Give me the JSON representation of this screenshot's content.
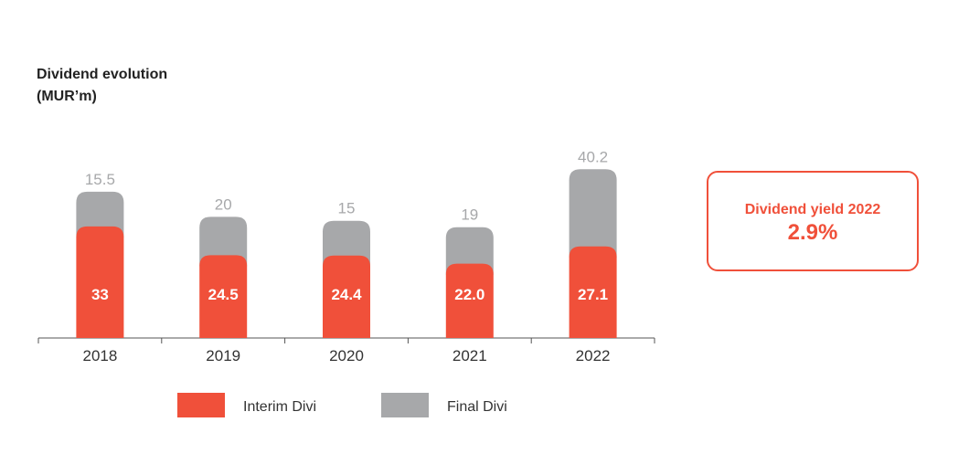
{
  "heading": {
    "line1": "Dividend evolution",
    "line2": "(MUR’m)"
  },
  "colors": {
    "interim": "#f0503a",
    "final": "#a7a8aa",
    "accent": "#f0503a",
    "axis": "#555555"
  },
  "yield_box": {
    "label": "Dividend yield 2022",
    "value": "2.9%"
  },
  "chart_data": {
    "type": "bar",
    "stacked": true,
    "title": "Dividend evolution",
    "ylabel": "(MUR’m)",
    "categories": [
      "2018",
      "2019",
      "2020",
      "2021",
      "2022"
    ],
    "series": [
      {
        "name": "Interim Divi",
        "values": [
          33,
          24.5,
          24.4,
          22.0,
          27.1
        ],
        "labels": [
          "33",
          "24.5",
          "24.4",
          "22.0",
          "27.1"
        ]
      },
      {
        "name": "Final Divi",
        "values": [
          15.5,
          20,
          15,
          19,
          40.2
        ],
        "labels": [
          "15.5",
          "20",
          "15",
          "19",
          "40.2"
        ]
      }
    ],
    "legend_position": "bottom",
    "grid": false
  }
}
